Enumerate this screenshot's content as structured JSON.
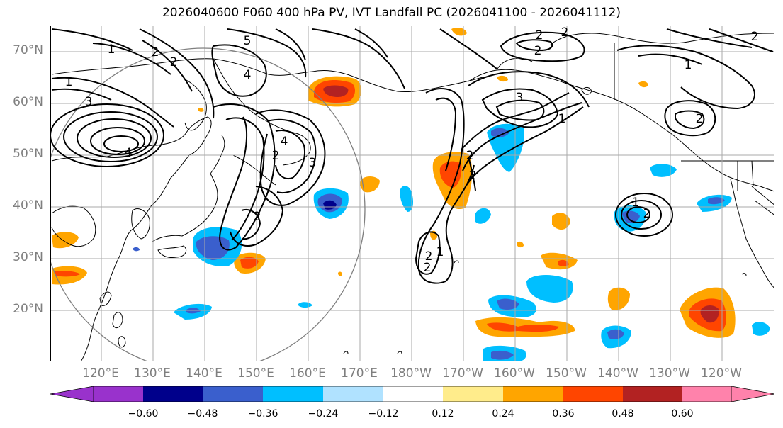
{
  "title": "2026040600 F060 400 hPa PV, IVT Landfall PC (2026041100 - 2026041112)",
  "lat_labels": [
    "70°N",
    "60°N",
    "50°N",
    "40°N",
    "30°N",
    "20°N"
  ],
  "lon_labels": [
    "120°E",
    "130°E",
    "140°E",
    "150°E",
    "160°E",
    "170°E",
    "180°W",
    "170°W",
    "160°W",
    "150°W",
    "140°W",
    "130°W",
    "120°W"
  ],
  "colorbar": {
    "ticks": [
      "−0.60",
      "−0.48",
      "−0.36",
      "−0.24",
      "−0.12",
      "0.12",
      "0.24",
      "0.36",
      "0.48",
      "0.60"
    ],
    "colors": [
      "#9932cc",
      "#00008b",
      "#3a5fcd",
      "#00bfff",
      "#b0e2ff",
      "#ffffff",
      "#ffec8b",
      "#ffa500",
      "#ff4500",
      "#b22222",
      "#ff82ab"
    ]
  },
  "contour_labels": [
    "1",
    "2",
    "3",
    "4",
    "5"
  ],
  "colors": {
    "grid": "#aaaaaa",
    "axis_label": "#7f7f7f",
    "contour": "#000000",
    "circle": "#808080"
  }
}
